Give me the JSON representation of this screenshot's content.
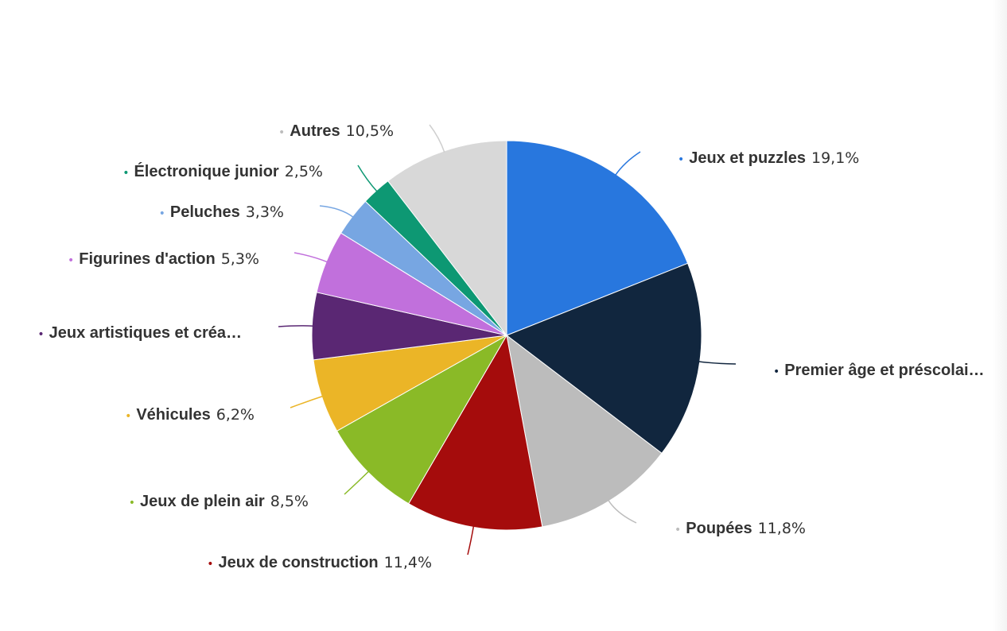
{
  "chart_data": {
    "type": "pie",
    "title": "",
    "legend": "none",
    "slices": [
      {
        "label": "Jeux et puzzles",
        "value": 19.1,
        "pct_text": "19,1%",
        "display_label": "Jeux et puzzles",
        "color": "#2877de"
      },
      {
        "label": "Premier âge et préscolaire",
        "value": 16.5,
        "pct_text": "",
        "display_label": "Premier âge et préscolai…",
        "color": "#11263e"
      },
      {
        "label": "Poupées",
        "value": 11.8,
        "pct_text": "11,8%",
        "display_label": "Poupées",
        "color": "#bcbcbc"
      },
      {
        "label": "Jeux de construction",
        "value": 11.4,
        "pct_text": "11,4%",
        "display_label": "Jeux de construction",
        "color": "#a50c0c"
      },
      {
        "label": "Jeux de plein air",
        "value": 8.5,
        "pct_text": "8,5%",
        "display_label": "Jeux de plein air",
        "color": "#8aba27"
      },
      {
        "label": "Véhicules",
        "value": 6.2,
        "pct_text": "6,2%",
        "display_label": "Véhicules",
        "color": "#ebb527"
      },
      {
        "label": "Jeux artistiques et créatifs",
        "value": 5.6,
        "pct_text": "",
        "display_label": "Jeux artistiques et créa…",
        "color": "#5a2773"
      },
      {
        "label": "Figurines d'action",
        "value": 5.3,
        "pct_text": "5,3%",
        "display_label": "Figurines d'action",
        "color": "#c170dc"
      },
      {
        "label": "Peluches",
        "value": 3.3,
        "pct_text": "3,3%",
        "display_label": "Peluches",
        "color": "#77a6e2"
      },
      {
        "label": "Électronique junior",
        "value": 2.5,
        "pct_text": "2,5%",
        "display_label": "Électronique junior",
        "color": "#0d9873"
      },
      {
        "label": "Autres",
        "value": 10.5,
        "pct_text": "10,5%",
        "display_label": "Autres",
        "color": "#d8d8d8"
      }
    ]
  }
}
